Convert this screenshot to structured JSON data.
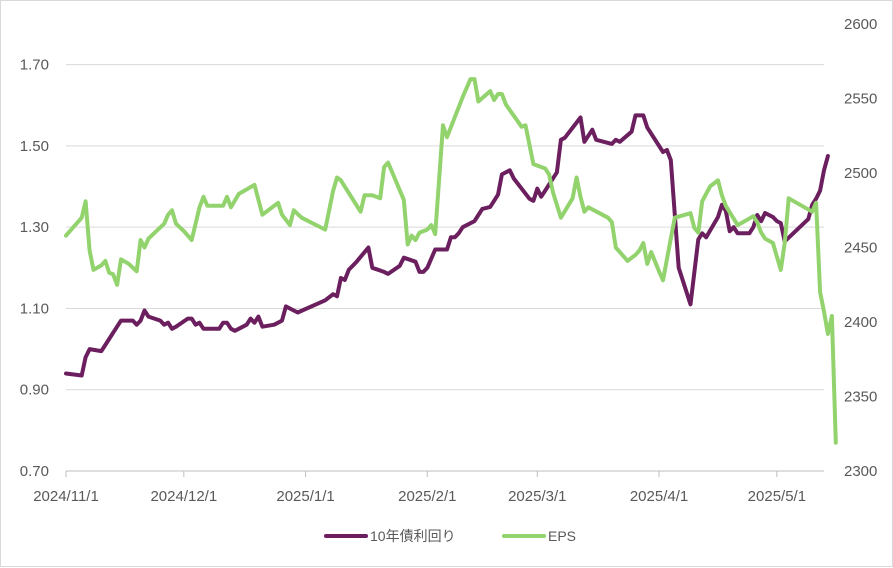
{
  "chart_data": {
    "type": "line",
    "title": "",
    "xlabel": "",
    "ylabel": "",
    "x_range": [
      "2024-11-01",
      "2025-05-13"
    ],
    "x_ticks": [
      {
        "date": "2024-11-01",
        "label": "2024/11/1"
      },
      {
        "date": "2024-12-01",
        "label": "2024/12/1"
      },
      {
        "date": "2025-01-01",
        "label": "2025/1/1"
      },
      {
        "date": "2025-02-01",
        "label": "2025/2/1"
      },
      {
        "date": "2025-03-01",
        "label": "2025/3/1"
      },
      {
        "date": "2025-04-01",
        "label": "2025/4/1"
      },
      {
        "date": "2025-05-01",
        "label": "2025/5/1"
      }
    ],
    "y_left": {
      "min": 0.7,
      "max": 1.8,
      "ticks": [
        "0.70",
        "0.90",
        "1.10",
        "1.30",
        "1.50",
        "1.70"
      ]
    },
    "y_right": {
      "min": 2300,
      "max": 2600,
      "ticks": [
        "2300",
        "2350",
        "2400",
        "2450",
        "2500",
        "2550",
        "2600"
      ]
    },
    "grid": "horizontal",
    "legend_position": "bottom",
    "series": [
      {
        "name": "10年債利回り",
        "axis": "left",
        "color": "#6B1F5E",
        "points": [
          [
            "2024-11-01",
            0.94
          ],
          [
            "2024-11-05",
            0.935
          ],
          [
            "2024-11-06",
            0.98
          ],
          [
            "2024-11-07",
            1.0
          ],
          [
            "2024-11-10",
            0.995
          ],
          [
            "2024-11-11",
            1.01
          ],
          [
            "2024-11-13",
            1.04
          ],
          [
            "2024-11-15",
            1.07
          ],
          [
            "2024-11-18",
            1.07
          ],
          [
            "2024-11-19",
            1.06
          ],
          [
            "2024-11-20",
            1.07
          ],
          [
            "2024-11-21",
            1.095
          ],
          [
            "2024-11-22",
            1.08
          ],
          [
            "2024-11-25",
            1.07
          ],
          [
            "2024-11-26",
            1.06
          ],
          [
            "2024-11-27",
            1.065
          ],
          [
            "2024-11-28",
            1.05
          ],
          [
            "2024-11-29",
            1.055
          ],
          [
            "2024-12-02",
            1.075
          ],
          [
            "2024-12-03",
            1.075
          ],
          [
            "2024-12-04",
            1.06
          ],
          [
            "2024-12-05",
            1.065
          ],
          [
            "2024-12-06",
            1.05
          ],
          [
            "2024-12-09",
            1.05
          ],
          [
            "2024-12-10",
            1.05
          ],
          [
            "2024-12-11",
            1.065
          ],
          [
            "2024-12-12",
            1.065
          ],
          [
            "2024-12-13",
            1.05
          ],
          [
            "2024-12-14",
            1.045
          ],
          [
            "2024-12-17",
            1.06
          ],
          [
            "2024-12-18",
            1.075
          ],
          [
            "2024-12-19",
            1.065
          ],
          [
            "2024-12-20",
            1.08
          ],
          [
            "2024-12-21",
            1.055
          ],
          [
            "2024-12-24",
            1.06
          ],
          [
            "2024-12-25",
            1.065
          ],
          [
            "2024-12-26",
            1.07
          ],
          [
            "2024-12-27",
            1.105
          ],
          [
            "2024-12-28",
            1.1
          ],
          [
            "2024-12-30",
            1.09
          ],
          [
            "2025-01-06",
            1.12
          ],
          [
            "2025-01-08",
            1.135
          ],
          [
            "2025-01-09",
            1.13
          ],
          [
            "2025-01-10",
            1.175
          ],
          [
            "2025-01-11",
            1.17
          ],
          [
            "2025-01-12",
            1.195
          ],
          [
            "2025-01-14",
            1.215
          ],
          [
            "2025-01-17",
            1.25
          ],
          [
            "2025-01-18",
            1.2
          ],
          [
            "2025-01-21",
            1.19
          ],
          [
            "2025-01-22",
            1.185
          ],
          [
            "2025-01-25",
            1.205
          ],
          [
            "2025-01-26",
            1.225
          ],
          [
            "2025-01-29",
            1.215
          ],
          [
            "2025-01-30",
            1.19
          ],
          [
            "2025-01-31",
            1.19
          ],
          [
            "2025-02-01",
            1.2
          ],
          [
            "2025-02-03",
            1.245
          ],
          [
            "2025-02-06",
            1.245
          ],
          [
            "2025-02-07",
            1.275
          ],
          [
            "2025-02-08",
            1.275
          ],
          [
            "2025-02-09",
            1.285
          ],
          [
            "2025-02-10",
            1.3
          ],
          [
            "2025-02-13",
            1.315
          ],
          [
            "2025-02-14",
            1.33
          ],
          [
            "2025-02-15",
            1.345
          ],
          [
            "2025-02-17",
            1.35
          ],
          [
            "2025-02-19",
            1.38
          ],
          [
            "2025-02-20",
            1.43
          ],
          [
            "2025-02-22",
            1.44
          ],
          [
            "2025-02-23",
            1.42
          ],
          [
            "2025-02-27",
            1.37
          ],
          [
            "2025-02-28",
            1.365
          ],
          [
            "2025-03-01",
            1.395
          ],
          [
            "2025-03-02",
            1.375
          ],
          [
            "2025-03-03",
            1.39
          ],
          [
            "2025-03-06",
            1.435
          ],
          [
            "2025-03-07",
            1.515
          ],
          [
            "2025-03-08",
            1.52
          ],
          [
            "2025-03-12",
            1.57
          ],
          [
            "2025-03-13",
            1.51
          ],
          [
            "2025-03-15",
            1.54
          ],
          [
            "2025-03-16",
            1.515
          ],
          [
            "2025-03-20",
            1.505
          ],
          [
            "2025-03-21",
            1.515
          ],
          [
            "2025-03-22",
            1.51
          ],
          [
            "2025-03-25",
            1.535
          ],
          [
            "2025-03-26",
            1.575
          ],
          [
            "2025-03-28",
            1.575
          ],
          [
            "2025-03-29",
            1.545
          ],
          [
            "2025-04-02",
            1.485
          ],
          [
            "2025-04-03",
            1.49
          ],
          [
            "2025-04-04",
            1.465
          ],
          [
            "2025-04-06",
            1.2
          ],
          [
            "2025-04-09",
            1.11
          ],
          [
            "2025-04-11",
            1.27
          ],
          [
            "2025-04-12",
            1.285
          ],
          [
            "2025-04-13",
            1.275
          ],
          [
            "2025-04-16",
            1.325
          ],
          [
            "2025-04-17",
            1.355
          ],
          [
            "2025-04-18",
            1.34
          ],
          [
            "2025-04-19",
            1.29
          ],
          [
            "2025-04-20",
            1.3
          ],
          [
            "2025-04-21",
            1.285
          ],
          [
            "2025-04-24",
            1.285
          ],
          [
            "2025-04-25",
            1.3
          ],
          [
            "2025-04-26",
            1.33
          ],
          [
            "2025-04-27",
            1.315
          ],
          [
            "2025-04-28",
            1.335
          ],
          [
            "2025-04-30",
            1.325
          ],
          [
            "2025-05-01",
            1.315
          ],
          [
            "2025-05-02",
            1.31
          ],
          [
            "2025-05-03",
            1.265
          ],
          [
            "2025-05-09",
            1.32
          ],
          [
            "2025-05-10",
            1.355
          ],
          [
            "2025-05-11",
            1.37
          ],
          [
            "2025-05-12",
            1.39
          ],
          [
            "2025-05-13",
            1.44
          ],
          [
            "2025-05-14",
            1.475
          ]
        ]
      },
      {
        "name": "EPS",
        "axis": "right",
        "color": "#92D36E",
        "points": [
          [
            "2024-11-01",
            2458
          ],
          [
            "2024-11-05",
            2470
          ],
          [
            "2024-11-06",
            2481
          ],
          [
            "2024-11-07",
            2448
          ],
          [
            "2024-11-08",
            2435
          ],
          [
            "2024-11-10",
            2438
          ],
          [
            "2024-11-11",
            2441
          ],
          [
            "2024-11-12",
            2433
          ],
          [
            "2024-11-13",
            2432
          ],
          [
            "2024-11-14",
            2425
          ],
          [
            "2024-11-15",
            2442
          ],
          [
            "2024-11-17",
            2439
          ],
          [
            "2024-11-19",
            2434
          ],
          [
            "2024-11-20",
            2455
          ],
          [
            "2024-11-21",
            2450
          ],
          [
            "2024-11-22",
            2456
          ],
          [
            "2024-11-26",
            2466
          ],
          [
            "2024-11-27",
            2472
          ],
          [
            "2024-11-28",
            2475
          ],
          [
            "2024-11-29",
            2466
          ],
          [
            "2024-12-01",
            2461
          ],
          [
            "2024-12-03",
            2455
          ],
          [
            "2024-12-05",
            2477
          ],
          [
            "2024-12-06",
            2484
          ],
          [
            "2024-12-07",
            2478
          ],
          [
            "2024-12-11",
            2478
          ],
          [
            "2024-12-12",
            2484
          ],
          [
            "2024-12-13",
            2477
          ],
          [
            "2024-12-15",
            2486
          ],
          [
            "2024-12-17",
            2489
          ],
          [
            "2024-12-19",
            2492
          ],
          [
            "2024-12-21",
            2472
          ],
          [
            "2024-12-23",
            2476
          ],
          [
            "2024-12-25",
            2480
          ],
          [
            "2024-12-26",
            2472
          ],
          [
            "2024-12-28",
            2465
          ],
          [
            "2024-12-29",
            2475
          ],
          [
            "2024-12-31",
            2470
          ],
          [
            "2025-01-06",
            2462
          ],
          [
            "2025-01-08",
            2488
          ],
          [
            "2025-01-09",
            2497
          ],
          [
            "2025-01-10",
            2495
          ],
          [
            "2025-01-15",
            2474
          ],
          [
            "2025-01-16",
            2485
          ],
          [
            "2025-01-18",
            2485
          ],
          [
            "2025-01-20",
            2483
          ],
          [
            "2025-01-21",
            2504
          ],
          [
            "2025-01-22",
            2507
          ],
          [
            "2025-01-26",
            2482
          ],
          [
            "2025-01-27",
            2452
          ],
          [
            "2025-01-28",
            2458
          ],
          [
            "2025-01-29",
            2455
          ],
          [
            "2025-01-30",
            2460
          ],
          [
            "2025-02-01",
            2462
          ],
          [
            "2025-02-02",
            2465
          ],
          [
            "2025-02-03",
            2459
          ],
          [
            "2025-02-05",
            2532
          ],
          [
            "2025-02-06",
            2524
          ],
          [
            "2025-02-10",
            2551
          ],
          [
            "2025-02-12",
            2563
          ],
          [
            "2025-02-13",
            2563
          ],
          [
            "2025-02-14",
            2548
          ],
          [
            "2025-02-17",
            2555
          ],
          [
            "2025-02-18",
            2549
          ],
          [
            "2025-02-19",
            2553
          ],
          [
            "2025-02-20",
            2553
          ],
          [
            "2025-02-21",
            2546
          ],
          [
            "2025-02-25",
            2531
          ],
          [
            "2025-02-26",
            2532
          ],
          [
            "2025-02-28",
            2506
          ],
          [
            "2025-03-03",
            2503
          ],
          [
            "2025-03-04",
            2499
          ],
          [
            "2025-03-05",
            2487
          ],
          [
            "2025-03-07",
            2470
          ],
          [
            "2025-03-10",
            2483
          ],
          [
            "2025-03-11",
            2497
          ],
          [
            "2025-03-12",
            2484
          ],
          [
            "2025-03-13",
            2474
          ],
          [
            "2025-03-14",
            2477
          ],
          [
            "2025-03-19",
            2470
          ],
          [
            "2025-03-20",
            2467
          ],
          [
            "2025-03-21",
            2450
          ],
          [
            "2025-03-24",
            2441
          ],
          [
            "2025-03-26",
            2445
          ],
          [
            "2025-03-27",
            2448
          ],
          [
            "2025-03-28",
            2453
          ],
          [
            "2025-03-29",
            2439
          ],
          [
            "2025-03-30",
            2447
          ],
          [
            "2025-04-01",
            2434
          ],
          [
            "2025-04-02",
            2428
          ],
          [
            "2025-04-04",
            2456
          ],
          [
            "2025-04-05",
            2470
          ],
          [
            "2025-04-09",
            2473
          ],
          [
            "2025-04-10",
            2463
          ],
          [
            "2025-04-11",
            2460
          ],
          [
            "2025-04-12",
            2481
          ],
          [
            "2025-04-14",
            2491
          ],
          [
            "2025-04-16",
            2495
          ],
          [
            "2025-04-17",
            2485
          ],
          [
            "2025-04-18",
            2478
          ],
          [
            "2025-04-21",
            2465
          ],
          [
            "2025-04-23",
            2468
          ],
          [
            "2025-04-25",
            2471
          ],
          [
            "2025-04-26",
            2467
          ],
          [
            "2025-04-27",
            2460
          ],
          [
            "2025-04-28",
            2456
          ],
          [
            "2025-04-30",
            2453
          ],
          [
            "2025-05-02",
            2435
          ],
          [
            "2025-05-03",
            2453
          ],
          [
            "2025-05-04",
            2483
          ],
          [
            "2025-05-10",
            2474
          ],
          [
            "2025-05-11",
            2480
          ],
          [
            "2025-05-12",
            2420
          ],
          [
            "2025-05-13",
            2407
          ],
          [
            "2025-05-14",
            2392
          ],
          [
            "2025-05-15",
            2404
          ],
          [
            "2025-05-16",
            2319
          ]
        ]
      }
    ]
  }
}
